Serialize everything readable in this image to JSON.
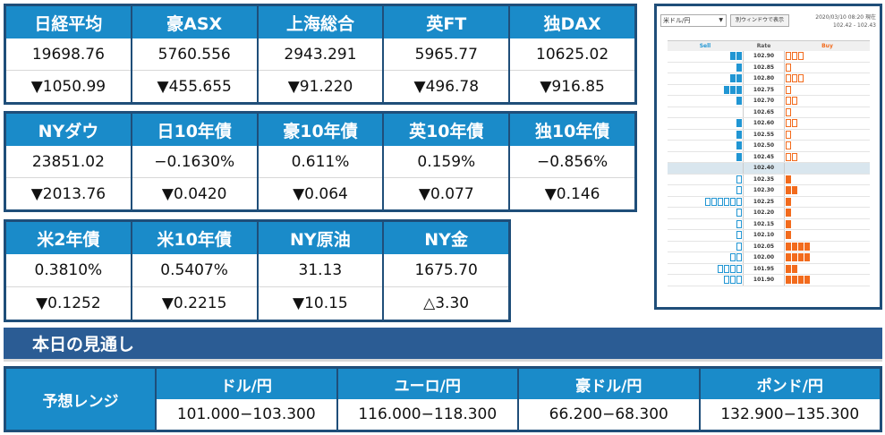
{
  "markets_row1": [
    {
      "name": "日経平均",
      "value": "19698.76",
      "change": "▼1050.99"
    },
    {
      "name": "豪ASX",
      "value": "5760.556",
      "change": "▼455.655"
    },
    {
      "name": "上海総合",
      "value": "2943.291",
      "change": "▼91.220"
    },
    {
      "name": "英FT",
      "value": "5965.77",
      "change": "▼496.78"
    },
    {
      "name": "独DAX",
      "value": "10625.02",
      "change": "▼916.85"
    }
  ],
  "markets_row2": [
    {
      "name": "NYダウ",
      "value": "23851.02",
      "change": "▼2013.76"
    },
    {
      "name": "日10年債",
      "value": "−0.1630%",
      "change": "▼0.0420"
    },
    {
      "name": "豪10年債",
      "value": "0.611%",
      "change": "▼0.064"
    },
    {
      "name": "英10年債",
      "value": "0.159%",
      "change": "▼0.077"
    },
    {
      "name": "独10年債",
      "value": "−0.856%",
      "change": "▼0.146"
    }
  ],
  "markets_row3": [
    {
      "name": "米2年債",
      "value": "0.3810%",
      "change": "▼0.1252"
    },
    {
      "name": "米10年債",
      "value": "0.5407%",
      "change": "▼0.2215"
    },
    {
      "name": "NY原油",
      "value": "31.13",
      "change": "▼10.15"
    },
    {
      "name": "NY金",
      "value": "1675.70",
      "change": "△3.30"
    }
  ],
  "outlook": {
    "title": "本日の見通し",
    "range_label": "予想レンジ",
    "pairs": [
      {
        "name": "ドル/円",
        "range": "101.000−103.300"
      },
      {
        "name": "ユーロ/円",
        "range": "116.000−118.300"
      },
      {
        "name": "豪ドル/円",
        "range": "66.200−68.300"
      },
      {
        "name": "ポンド/円",
        "range": "132.900−135.300"
      }
    ]
  },
  "orderbook": {
    "pair": "米ドル/円",
    "window_button": "別ウィンドウで表示",
    "datetime": "2020/03/10 08:20 現在",
    "bid_ask": "102.42 - 102.43",
    "headers": {
      "sell": "Sell",
      "rate": "Rate",
      "buy": "Buy"
    },
    "colors": {
      "sell": "#2196d3",
      "buy": "#f26b1d"
    },
    "rows": [
      {
        "rate": "102.90",
        "sell": 2,
        "sell_empty": 0,
        "buy": 0,
        "buy_empty": 3
      },
      {
        "rate": "102.85",
        "sell": 1,
        "sell_empty": 0,
        "buy": 0,
        "buy_empty": 1
      },
      {
        "rate": "102.80",
        "sell": 2,
        "sell_empty": 0,
        "buy": 0,
        "buy_empty": 3
      },
      {
        "rate": "102.75",
        "sell": 3,
        "sell_empty": 0,
        "buy": 0,
        "buy_empty": 1
      },
      {
        "rate": "102.70",
        "sell": 1,
        "sell_empty": 0,
        "buy": 0,
        "buy_empty": 2
      },
      {
        "rate": "102.65",
        "sell": 0,
        "sell_empty": 0,
        "buy": 0,
        "buy_empty": 1
      },
      {
        "rate": "102.60",
        "sell": 1,
        "sell_empty": 0,
        "buy": 0,
        "buy_empty": 2
      },
      {
        "rate": "102.55",
        "sell": 1,
        "sell_empty": 0,
        "buy": 0,
        "buy_empty": 1
      },
      {
        "rate": "102.50",
        "sell": 1,
        "sell_empty": 0,
        "buy": 0,
        "buy_empty": 1
      },
      {
        "rate": "102.45",
        "sell": 1,
        "sell_empty": 0,
        "buy": 0,
        "buy_empty": 2
      },
      {
        "rate": "102.40",
        "sell": 0,
        "sell_empty": 0,
        "buy": 0,
        "buy_empty": 0,
        "mid": true
      },
      {
        "rate": "102.35",
        "sell": 0,
        "sell_empty": 1,
        "buy": 1,
        "buy_empty": 0
      },
      {
        "rate": "102.30",
        "sell": 0,
        "sell_empty": 1,
        "buy": 2,
        "buy_empty": 0
      },
      {
        "rate": "102.25",
        "sell": 0,
        "sell_empty": 6,
        "buy": 1,
        "buy_empty": 0
      },
      {
        "rate": "102.20",
        "sell": 0,
        "sell_empty": 1,
        "buy": 1,
        "buy_empty": 0
      },
      {
        "rate": "102.15",
        "sell": 0,
        "sell_empty": 1,
        "buy": 1,
        "buy_empty": 0
      },
      {
        "rate": "102.10",
        "sell": 0,
        "sell_empty": 1,
        "buy": 1,
        "buy_empty": 0
      },
      {
        "rate": "102.05",
        "sell": 0,
        "sell_empty": 1,
        "buy": 4,
        "buy_empty": 0
      },
      {
        "rate": "102.00",
        "sell": 0,
        "sell_empty": 2,
        "buy": 4,
        "buy_empty": 0
      },
      {
        "rate": "101.95",
        "sell": 0,
        "sell_empty": 4,
        "buy": 2,
        "buy_empty": 0
      },
      {
        "rate": "101.90",
        "sell": 0,
        "sell_empty": 3,
        "buy": 4,
        "buy_empty": 0
      }
    ]
  }
}
